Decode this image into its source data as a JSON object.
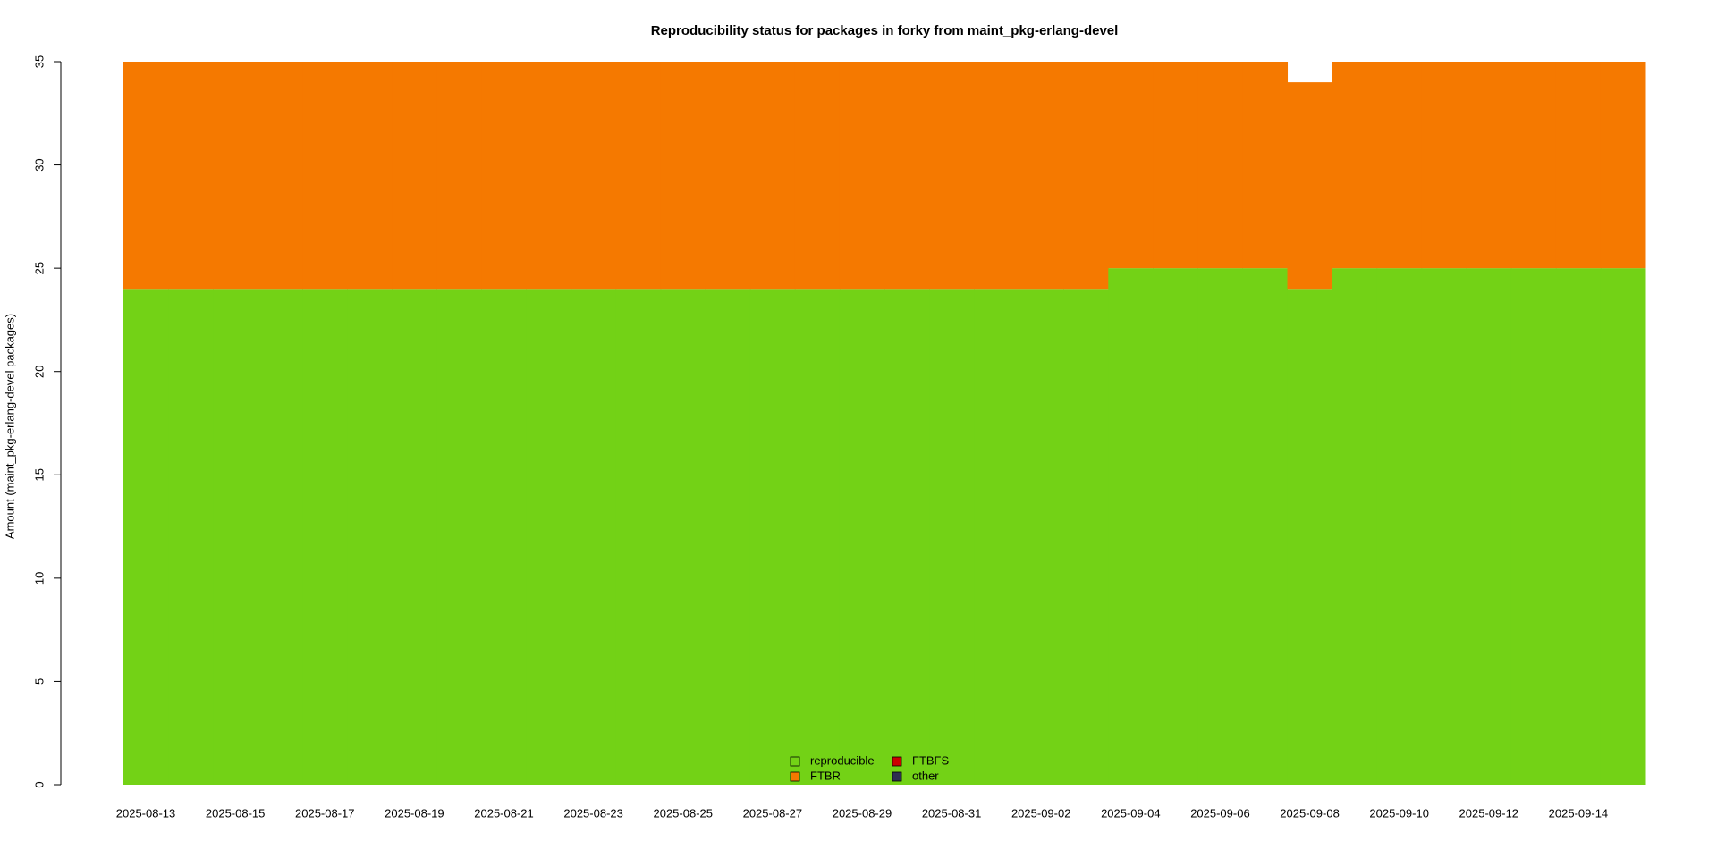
{
  "chart_data": {
    "type": "stacked-bar",
    "title": "Reproducibility status for packages in forky from maint_pkg-erlang-devel",
    "y_label": "Amount (maint_pkg-erlang-devel packages)",
    "categories": [
      "2025-08-13",
      null,
      "2025-08-15",
      null,
      "2025-08-17",
      null,
      "2025-08-19",
      null,
      "2025-08-21",
      null,
      "2025-08-23",
      null,
      "2025-08-25",
      null,
      "2025-08-27",
      null,
      "2025-08-29",
      null,
      "2025-08-31",
      null,
      "2025-09-02",
      null,
      "2025-09-04",
      null,
      "2025-09-06",
      null,
      "2025-09-08",
      null,
      "2025-09-10",
      null,
      "2025-09-12",
      null,
      "2025-09-14",
      null
    ],
    "series": [
      {
        "name": "reproducible",
        "color": "#73d216",
        "values": [
          24,
          24,
          24,
          24,
          24,
          24,
          24,
          24,
          24,
          24,
          24,
          24,
          24,
          24,
          24,
          24,
          24,
          24,
          24,
          24,
          24,
          24,
          25,
          25,
          25,
          25,
          24,
          25,
          25,
          25,
          25,
          25,
          25,
          25
        ]
      },
      {
        "name": "FTBR",
        "color": "#f57900",
        "values": [
          11,
          11,
          11,
          11,
          11,
          11,
          11,
          11,
          11,
          11,
          11,
          11,
          11,
          11,
          11,
          11,
          11,
          11,
          11,
          11,
          11,
          11,
          10,
          10,
          10,
          10,
          10,
          10,
          10,
          10,
          10,
          10,
          10,
          10
        ]
      },
      {
        "name": "FTBFS",
        "color": "#cc0000",
        "values": [
          0,
          0,
          0,
          0,
          0,
          0,
          0,
          0,
          0,
          0,
          0,
          0,
          0,
          0,
          0,
          0,
          0,
          0,
          0,
          0,
          0,
          0,
          0,
          0,
          0,
          0,
          0,
          0,
          0,
          0,
          0,
          0,
          0,
          0
        ]
      },
      {
        "name": "other",
        "color": "#2e3050",
        "values": [
          0,
          0,
          0,
          0,
          0,
          0,
          0,
          0,
          0,
          0,
          0,
          0,
          0,
          0,
          0,
          0,
          0,
          0,
          0,
          0,
          0,
          0,
          0,
          0,
          0,
          0,
          0,
          0,
          0,
          0,
          0,
          0,
          0,
          0
        ]
      }
    ],
    "ylim": [
      0,
      35
    ],
    "yticks": [
      0,
      5,
      10,
      15,
      20,
      25,
      30,
      35
    ],
    "legend": "bottom"
  }
}
